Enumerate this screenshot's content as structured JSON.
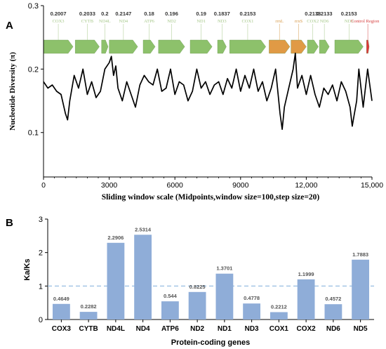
{
  "colors": {
    "protein_gene": "#8dc16b",
    "rrna_gene": "#e09a45",
    "control_region": "#e0353b",
    "protein_label": "#a6c88a",
    "rrna_label": "#d79a4a",
    "control_label": "#d64040",
    "bar": "#8fadd8",
    "reference_line": "#8bb6de",
    "curve": "#000000"
  },
  "chart_data": [
    {
      "panel_label": "A",
      "type": "line",
      "xlabel": "Sliding window scale (Midpoints,window size=100,step size=20)",
      "ylabel": "Nucleotide Diversity (π)",
      "xlim": [
        0,
        15000
      ],
      "ylim": [
        0.03,
        0.3
      ],
      "xticks": [
        0,
        3000,
        6000,
        9000,
        12000,
        15000
      ],
      "xtick_labels": [
        "0",
        "3000",
        "6000",
        "9000",
        "12,000",
        "15,000"
      ],
      "yticks": [
        0.1,
        0.2,
        0.3
      ],
      "ytick_labels": [
        "0.1",
        "0.2",
        "0.3"
      ],
      "grid": false,
      "genes": [
        {
          "name": "COX3",
          "start": 0,
          "end": 1350,
          "kind": "protein",
          "value_label": "0.2007"
        },
        {
          "name": "CYTB",
          "start": 1450,
          "end": 2550,
          "kind": "protein",
          "value_label": "0.2033"
        },
        {
          "name": "ND4L",
          "start": 2650,
          "end": 2950,
          "kind": "protein",
          "value_label": "0.2"
        },
        {
          "name": "ND4",
          "start": 3000,
          "end": 4300,
          "kind": "protein",
          "value_label": "0.2147"
        },
        {
          "name": "ATP6",
          "start": 4550,
          "end": 5100,
          "kind": "protein",
          "value_label": "0.18"
        },
        {
          "name": "ND2",
          "start": 5250,
          "end": 6450,
          "kind": "protein",
          "value_label": "0.196"
        },
        {
          "name": "ND1",
          "start": 6700,
          "end": 7700,
          "kind": "protein",
          "value_label": "0.19"
        },
        {
          "name": "ND3",
          "start": 7950,
          "end": 8350,
          "kind": "protein",
          "value_label": "0.1837"
        },
        {
          "name": "COX1",
          "start": 8500,
          "end": 10150,
          "kind": "protein",
          "value_label": "0.2153"
        },
        {
          "name": "rrnL",
          "start": 10300,
          "end": 11250,
          "kind": "rrna",
          "value_label": ""
        },
        {
          "name": "rrnS",
          "start": 11300,
          "end": 12000,
          "kind": "rrna",
          "value_label": ""
        },
        {
          "name": "COX2",
          "start": 12050,
          "end": 12550,
          "kind": "protein",
          "value_label": "0.2133"
        },
        {
          "name": "ND6",
          "start": 12600,
          "end": 13050,
          "kind": "protein",
          "value_label": "0.2133"
        },
        {
          "name": "ND5",
          "start": 13300,
          "end": 14600,
          "kind": "protein",
          "value_label": "0.2153"
        },
        {
          "name": "Control Region",
          "start": 14750,
          "end": 15150,
          "kind": "control",
          "value_label": ""
        }
      ],
      "series": [
        {
          "x": [
            0,
            200,
            400,
            600,
            800,
            1000,
            1100,
            1200,
            1400,
            1600,
            1800,
            2000,
            2200,
            2400,
            2600,
            2800,
            3000,
            3100,
            3200,
            3300,
            3400,
            3600,
            3800,
            4000,
            4200,
            4400,
            4600,
            4800,
            5000,
            5200,
            5400,
            5600,
            5800,
            6000,
            6200,
            6400,
            6600,
            6800,
            7000,
            7200,
            7400,
            7600,
            7800,
            8000,
            8200,
            8400,
            8600,
            8800,
            9000,
            9200,
            9400,
            9600,
            9800,
            10000,
            10200,
            10400,
            10600,
            10800,
            10900,
            11000,
            11200,
            11400,
            11500,
            11600,
            11800,
            12000,
            12200,
            12400,
            12600,
            12800,
            13000,
            13200,
            13400,
            13600,
            13800,
            14000,
            14100,
            14200,
            14300,
            14400,
            14500,
            14600,
            14800,
            15000
          ],
          "values": [
            0.18,
            0.17,
            0.175,
            0.165,
            0.16,
            0.13,
            0.12,
            0.15,
            0.19,
            0.17,
            0.2,
            0.16,
            0.18,
            0.155,
            0.165,
            0.2,
            0.21,
            0.22,
            0.19,
            0.205,
            0.17,
            0.15,
            0.18,
            0.16,
            0.14,
            0.175,
            0.19,
            0.18,
            0.175,
            0.2,
            0.165,
            0.17,
            0.2,
            0.16,
            0.18,
            0.175,
            0.15,
            0.165,
            0.2,
            0.17,
            0.18,
            0.16,
            0.175,
            0.18,
            0.16,
            0.185,
            0.17,
            0.2,
            0.165,
            0.19,
            0.17,
            0.2,
            0.165,
            0.18,
            0.15,
            0.17,
            0.2,
            0.13,
            0.105,
            0.14,
            0.17,
            0.2,
            0.225,
            0.17,
            0.19,
            0.16,
            0.19,
            0.16,
            0.14,
            0.17,
            0.16,
            0.175,
            0.15,
            0.18,
            0.165,
            0.14,
            0.11,
            0.13,
            0.15,
            0.2,
            0.17,
            0.14,
            0.2,
            0.15
          ]
        }
      ]
    },
    {
      "panel_label": "B",
      "type": "bar",
      "xlabel": "Protein-coding genes",
      "ylabel": "Ka/Ks",
      "ylim": [
        0,
        3
      ],
      "yticks": [
        0,
        1,
        2,
        3
      ],
      "grid": false,
      "reference_line": 1,
      "categories": [
        "COX3",
        "CYTB",
        "ND4L",
        "ND4",
        "ATP6",
        "ND2",
        "ND1",
        "ND3",
        "COX1",
        "COX2",
        "ND6",
        "ND5"
      ],
      "values": [
        0.4649,
        0.2282,
        2.2906,
        2.5314,
        0.544,
        0.8225,
        1.3701,
        0.4778,
        0.2212,
        1.1999,
        0.4572,
        1.7883
      ],
      "value_labels": [
        "0.4649",
        "0.2282",
        "2.2906",
        "2.5314",
        "0.544",
        "0.8225",
        "1.3701",
        "0.4778",
        "0.2212",
        "1.1999",
        "0.4572",
        "1.7883"
      ]
    }
  ]
}
